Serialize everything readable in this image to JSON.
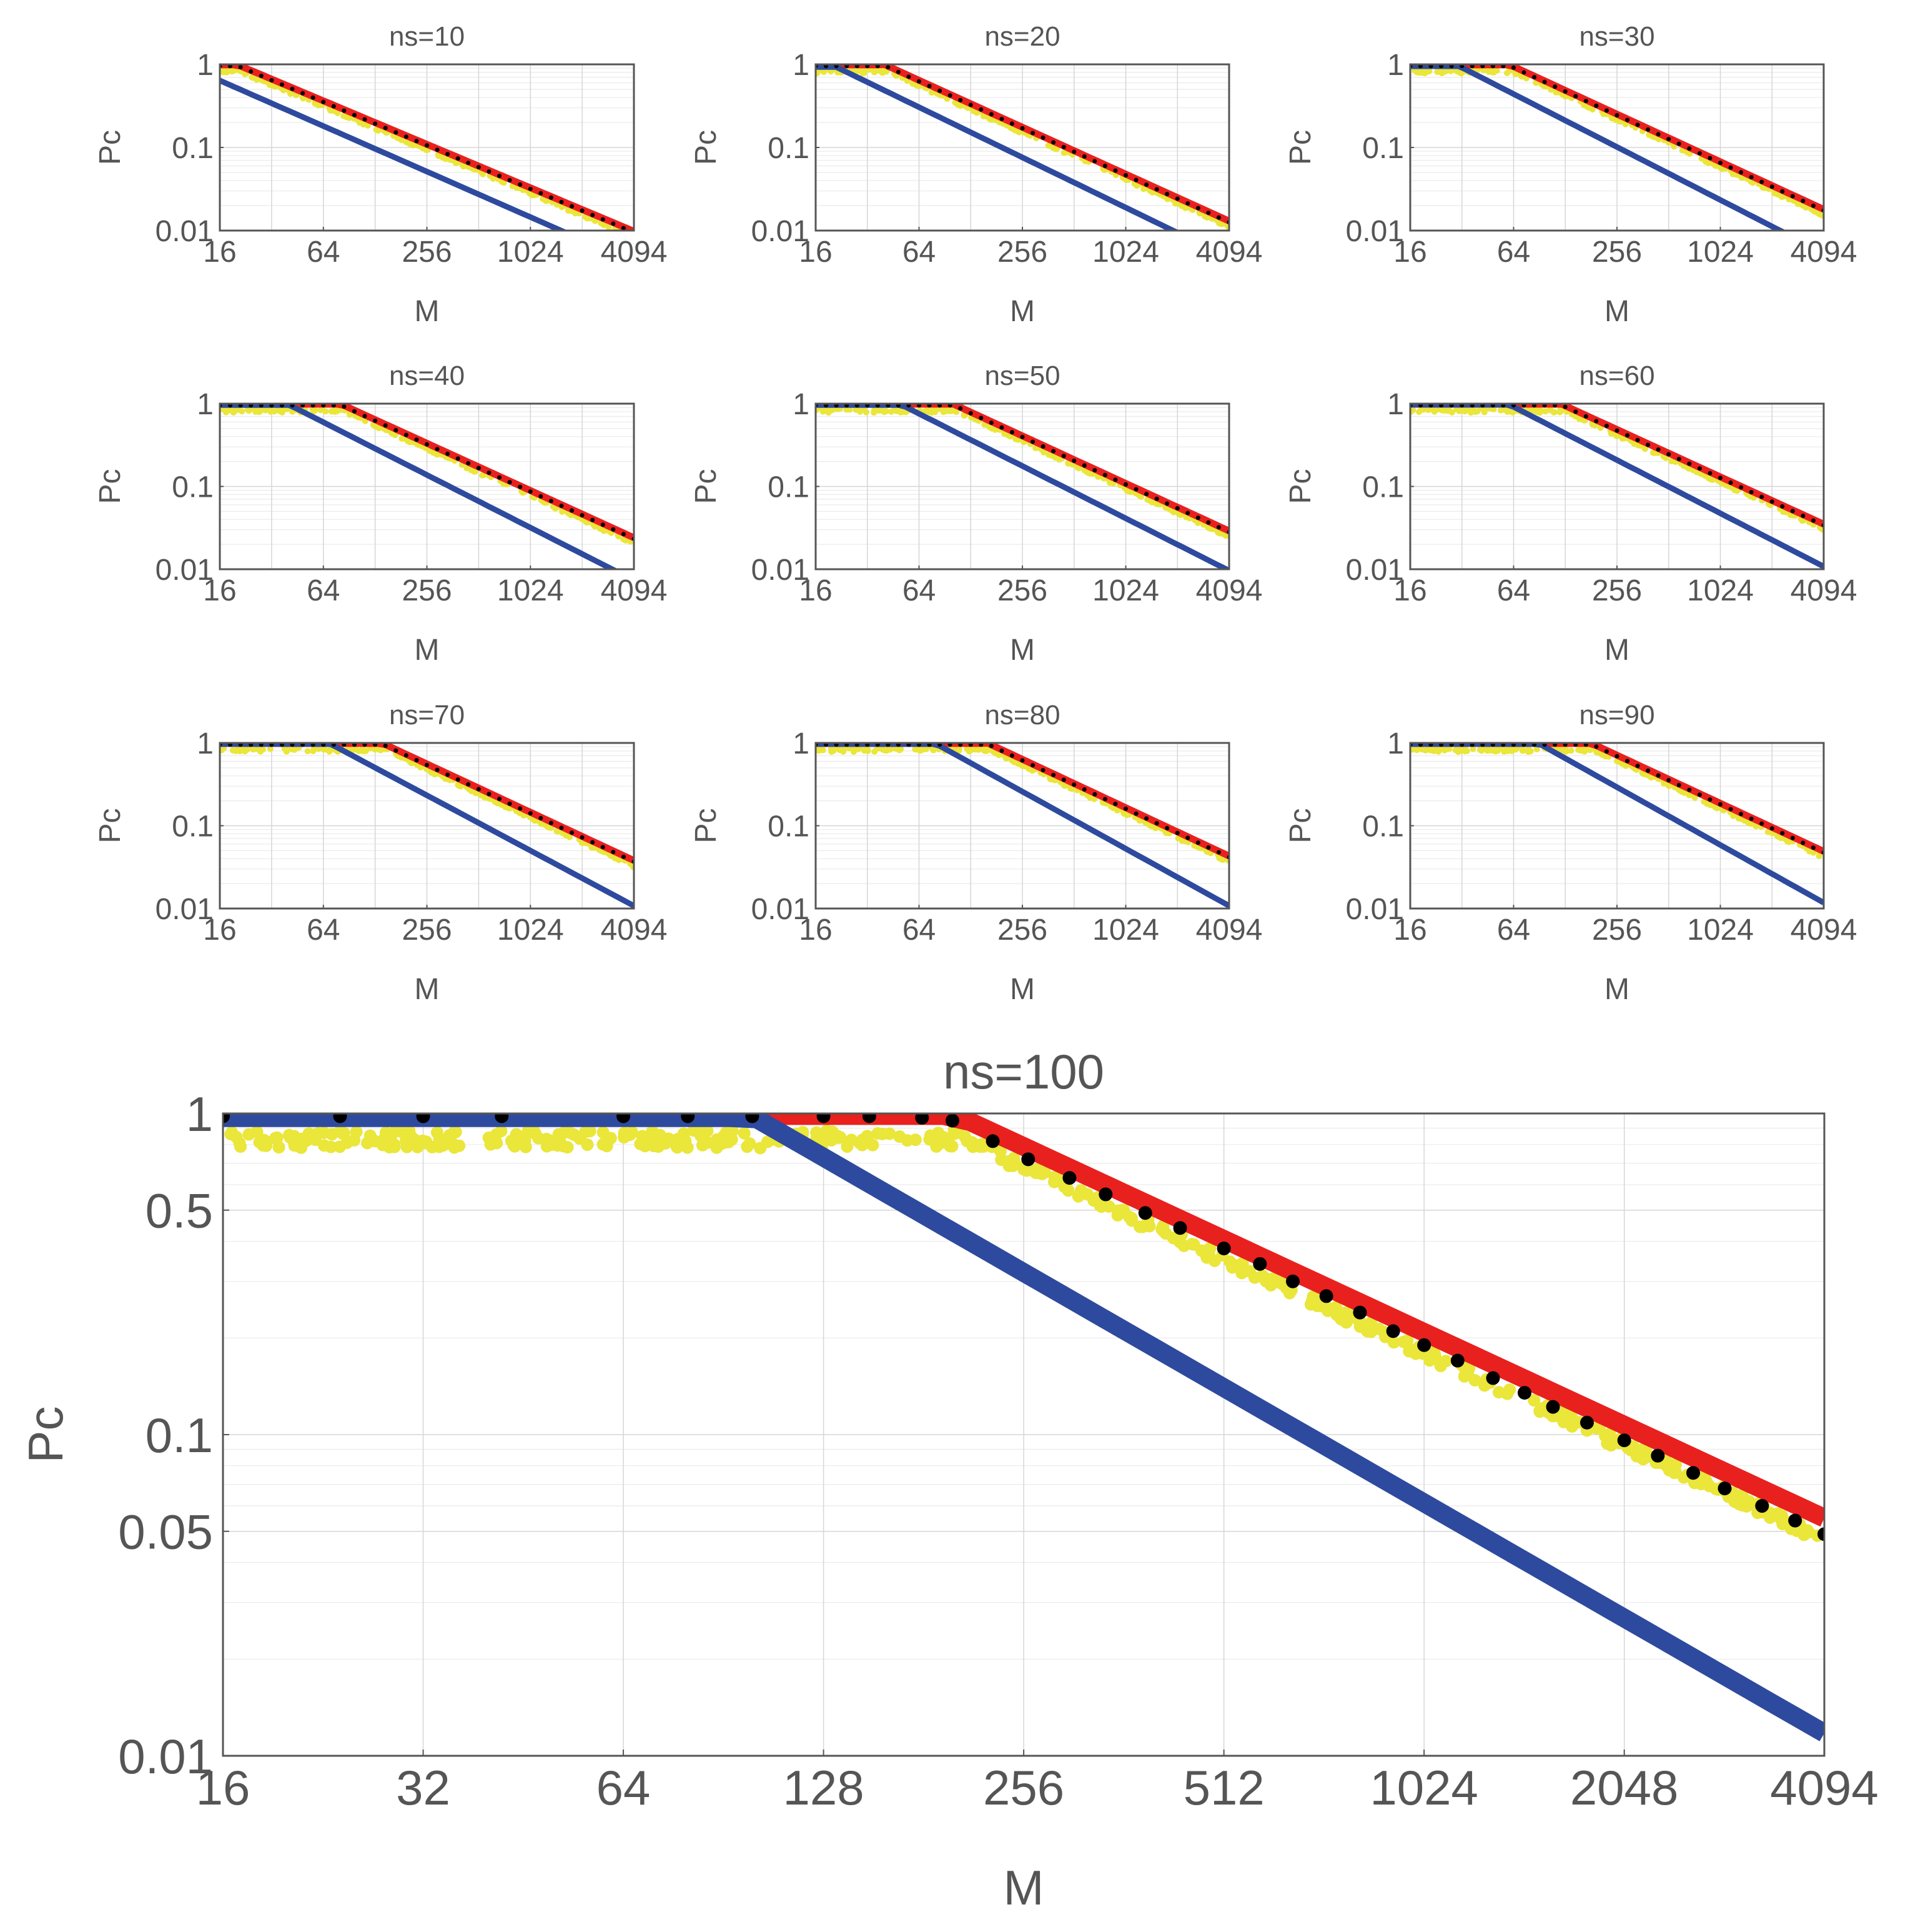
{
  "colors": {
    "upper_bound": "#e8211f",
    "experimental": "#eae63a",
    "theory_points": "#000000",
    "lower_bound": "#2e4a9e",
    "axis": "#555555",
    "grid": "#d6d6d6"
  },
  "chart_data": [
    {
      "type": "line",
      "title": "ns=10",
      "ns": 10,
      "xlabel": "M",
      "ylabel": "Pc",
      "xscale": "log2",
      "yscale": "log10",
      "xlim": [
        16,
        4094
      ],
      "ylim": [
        0.01,
        1
      ],
      "x_ticks": [
        16,
        64,
        256,
        1024,
        4094
      ],
      "y_ticks": [
        {
          "v": 0.01,
          "label": "0.01"
        },
        {
          "v": 0.1,
          "label": "0.1"
        },
        {
          "v": 1,
          "label": "1"
        }
      ],
      "grid": true,
      "curves": {
        "red_knee": 20,
        "red_end": 0.0098,
        "blue_start": 0.8,
        "blue_end": 0.0042
      }
    },
    {
      "type": "line",
      "title": "ns=20",
      "ns": 20,
      "xlabel": "M",
      "ylabel": "Pc",
      "xscale": "log2",
      "yscale": "log10",
      "xlim": [
        16,
        4094
      ],
      "ylim": [
        0.01,
        1
      ],
      "x_ticks": [
        16,
        64,
        256,
        1024,
        4094
      ],
      "y_ticks": [
        {
          "v": 0.01,
          "label": "0.01"
        },
        {
          "v": 0.1,
          "label": "0.1"
        },
        {
          "v": 1,
          "label": "1"
        }
      ],
      "grid": true,
      "curves": {
        "red_knee": 40,
        "red_end": 0.013,
        "blue_start": 0.93,
        "blue_end": 0.0048
      }
    },
    {
      "type": "line",
      "title": "ns=30",
      "ns": 30,
      "xlabel": "M",
      "ylabel": "Pc",
      "xscale": "log2",
      "yscale": "log10",
      "xlim": [
        16,
        4094
      ],
      "ylim": [
        0.01,
        1
      ],
      "x_ticks": [
        16,
        64,
        256,
        1024,
        4094
      ],
      "y_ticks": [
        {
          "v": 0.01,
          "label": "0.01"
        },
        {
          "v": 0.1,
          "label": "0.1"
        },
        {
          "v": 1,
          "label": "1"
        }
      ],
      "grid": true,
      "curves": {
        "red_knee": 60,
        "red_end": 0.018,
        "blue_start": 0.95,
        "blue_end": 0.0055
      }
    },
    {
      "type": "line",
      "title": "ns=40",
      "ns": 40,
      "xlabel": "M",
      "ylabel": "Pc",
      "xscale": "log2",
      "yscale": "log10",
      "xlim": [
        16,
        4094
      ],
      "ylim": [
        0.01,
        1
      ],
      "x_ticks": [
        16,
        64,
        256,
        1024,
        4094
      ],
      "y_ticks": [
        {
          "v": 0.01,
          "label": "0.01"
        },
        {
          "v": 0.1,
          "label": "0.1"
        },
        {
          "v": 1,
          "label": "1"
        }
      ],
      "grid": true,
      "curves": {
        "red_knee": 80,
        "red_end": 0.024,
        "blue_start": 0.96,
        "blue_end": 0.0075
      }
    },
    {
      "type": "line",
      "title": "ns=50",
      "ns": 50,
      "xlabel": "M",
      "ylabel": "Pc",
      "xscale": "log2",
      "yscale": "log10",
      "xlim": [
        16,
        4094
      ],
      "ylim": [
        0.01,
        1
      ],
      "x_ticks": [
        16,
        64,
        256,
        1024,
        4094
      ],
      "y_ticks": [
        {
          "v": 0.01,
          "label": "0.01"
        },
        {
          "v": 0.1,
          "label": "0.1"
        },
        {
          "v": 1,
          "label": "1"
        }
      ],
      "grid": true,
      "curves": {
        "red_knee": 100,
        "red_end": 0.029,
        "blue_start": 0.96,
        "blue_end": 0.0098
      }
    },
    {
      "type": "line",
      "title": "ns=60",
      "ns": 60,
      "xlabel": "M",
      "ylabel": "Pc",
      "xscale": "log2",
      "yscale": "log10",
      "xlim": [
        16,
        4094
      ],
      "ylim": [
        0.01,
        1
      ],
      "x_ticks": [
        16,
        64,
        256,
        1024,
        4094
      ],
      "y_ticks": [
        {
          "v": 0.01,
          "label": "0.01"
        },
        {
          "v": 0.1,
          "label": "0.1"
        },
        {
          "v": 1,
          "label": "1"
        }
      ],
      "grid": true,
      "curves": {
        "red_knee": 120,
        "red_end": 0.035,
        "blue_start": 0.97,
        "blue_end": 0.011
      }
    },
    {
      "type": "line",
      "title": "ns=70",
      "ns": 70,
      "xlabel": "M",
      "ylabel": "Pc",
      "xscale": "log2",
      "yscale": "log10",
      "xlim": [
        16,
        4094
      ],
      "ylim": [
        0.01,
        1
      ],
      "x_ticks": [
        16,
        64,
        256,
        1024,
        4094
      ],
      "y_ticks": [
        {
          "v": 0.01,
          "label": "0.01"
        },
        {
          "v": 0.1,
          "label": "0.1"
        },
        {
          "v": 1,
          "label": "1"
        }
      ],
      "grid": true,
      "curves": {
        "red_knee": 140,
        "red_end": 0.038,
        "blue_start": 0.97,
        "blue_end": 0.011
      }
    },
    {
      "type": "line",
      "title": "ns=80",
      "ns": 80,
      "xlabel": "M",
      "ylabel": "Pc",
      "xscale": "log2",
      "yscale": "log10",
      "xlim": [
        16,
        4094
      ],
      "ylim": [
        0.01,
        1
      ],
      "x_ticks": [
        16,
        64,
        256,
        1024,
        4094
      ],
      "y_ticks": [
        {
          "v": 0.01,
          "label": "0.01"
        },
        {
          "v": 0.1,
          "label": "0.1"
        },
        {
          "v": 1,
          "label": "1"
        }
      ],
      "grid": true,
      "curves": {
        "red_knee": 160,
        "red_end": 0.043,
        "blue_start": 0.97,
        "blue_end": 0.011
      }
    },
    {
      "type": "line",
      "title": "ns=90",
      "ns": 90,
      "xlabel": "M",
      "ylabel": "Pc",
      "xscale": "log2",
      "yscale": "log10",
      "xlim": [
        16,
        4094
      ],
      "ylim": [
        0.01,
        1
      ],
      "x_ticks": [
        16,
        64,
        256,
        1024,
        4094
      ],
      "y_ticks": [
        {
          "v": 0.01,
          "label": "0.01"
        },
        {
          "v": 0.1,
          "label": "0.1"
        },
        {
          "v": 1,
          "label": "1"
        }
      ],
      "grid": true,
      "curves": {
        "red_knee": 180,
        "red_end": 0.049,
        "blue_start": 0.97,
        "blue_end": 0.012
      }
    },
    {
      "type": "line",
      "title": "ns=100",
      "ns": 100,
      "xlabel": "M",
      "ylabel": "Pc",
      "xscale": "log2",
      "yscale": "log10",
      "xlim": [
        16,
        4094
      ],
      "ylim": [
        0.01,
        1
      ],
      "x_ticks": [
        16,
        32,
        64,
        128,
        256,
        512,
        1024,
        2048,
        4094
      ],
      "y_ticks": [
        {
          "v": 0.01,
          "label": "0.01"
        },
        {
          "v": 0.05,
          "label": "0.05"
        },
        {
          "v": 0.1,
          "label": "0.1"
        },
        {
          "v": 0.5,
          "label": "0.5"
        },
        {
          "v": 1,
          "label": "1"
        }
      ],
      "grid": true,
      "curves": {
        "red_knee": 200,
        "red_end": 0.055,
        "blue_start": 0.97,
        "blue_end": 0.012
      },
      "theory_points": [
        {
          "x": 16,
          "y": 0.98
        },
        {
          "x": 24,
          "y": 0.98
        },
        {
          "x": 32,
          "y": 0.98
        },
        {
          "x": 42,
          "y": 0.98
        },
        {
          "x": 64,
          "y": 0.98
        },
        {
          "x": 80,
          "y": 0.98
        },
        {
          "x": 100,
          "y": 0.98
        },
        {
          "x": 128,
          "y": 0.98
        },
        {
          "x": 150,
          "y": 0.98
        },
        {
          "x": 180,
          "y": 0.97
        },
        {
          "x": 200,
          "y": 0.95
        },
        {
          "x": 230,
          "y": 0.82
        },
        {
          "x": 260,
          "y": 0.72
        },
        {
          "x": 300,
          "y": 0.63
        },
        {
          "x": 340,
          "y": 0.56
        },
        {
          "x": 390,
          "y": 0.49
        },
        {
          "x": 440,
          "y": 0.44
        },
        {
          "x": 512,
          "y": 0.38
        },
        {
          "x": 580,
          "y": 0.34
        },
        {
          "x": 650,
          "y": 0.3
        },
        {
          "x": 730,
          "y": 0.27
        },
        {
          "x": 820,
          "y": 0.24
        },
        {
          "x": 920,
          "y": 0.21
        },
        {
          "x": 1024,
          "y": 0.19
        },
        {
          "x": 1150,
          "y": 0.17
        },
        {
          "x": 1300,
          "y": 0.15
        },
        {
          "x": 1450,
          "y": 0.135
        },
        {
          "x": 1600,
          "y": 0.122
        },
        {
          "x": 1800,
          "y": 0.109
        },
        {
          "x": 2048,
          "y": 0.096
        },
        {
          "x": 2300,
          "y": 0.086
        },
        {
          "x": 2600,
          "y": 0.076
        },
        {
          "x": 2900,
          "y": 0.068
        },
        {
          "x": 3300,
          "y": 0.06
        },
        {
          "x": 3700,
          "y": 0.054
        },
        {
          "x": 4094,
          "y": 0.049
        }
      ]
    }
  ]
}
